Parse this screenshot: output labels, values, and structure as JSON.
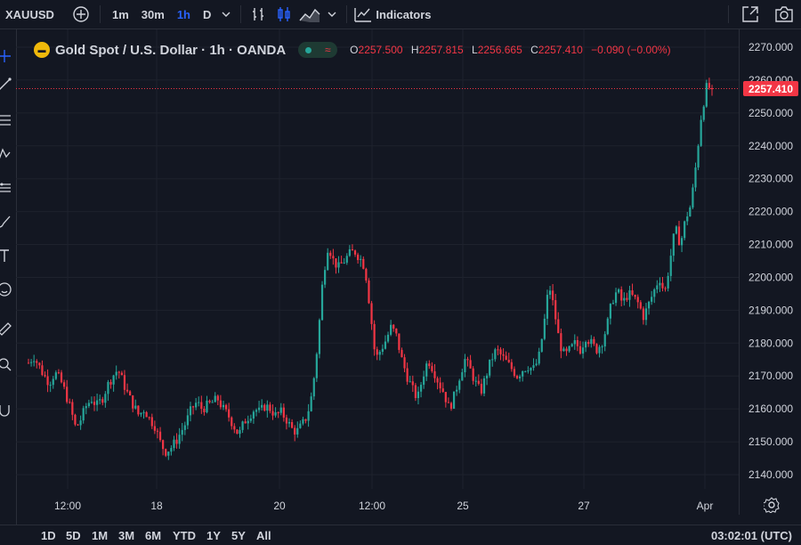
{
  "toolbar": {
    "symbol": "XAUUSD",
    "timeframes": [
      "1m",
      "30m",
      "1h",
      "D"
    ],
    "active_timeframe": "1h",
    "indicators_label": "Indicators"
  },
  "legend": {
    "title": "Gold Spot / U.S. Dollar · 1h · OANDA",
    "open_label": "O",
    "open": "2257.500",
    "high_label": "H",
    "high": "2257.815",
    "low_label": "L",
    "low": "2256.665",
    "close_label": "C",
    "close": "2257.410",
    "change": "−0.090 (−0.00%)"
  },
  "price_axis": {
    "ticks": [
      "2270.000",
      "2260.000",
      "2250.000",
      "2240.000",
      "2230.000",
      "2220.000",
      "2210.000",
      "2200.000",
      "2190.000",
      "2180.000",
      "2170.000",
      "2160.000",
      "2150.000",
      "2140.000"
    ],
    "last_price": "2257.410"
  },
  "time_axis": {
    "ticks": [
      "12:00",
      "18",
      "20",
      "12:00",
      "25",
      "27",
      "Apr"
    ]
  },
  "bottom": {
    "ranges": [
      "1D",
      "5D",
      "1M",
      "3M",
      "6M",
      "YTD",
      "1Y",
      "5Y",
      "All"
    ],
    "clock": "03:02:01 (UTC)"
  },
  "colors": {
    "background": "#131722",
    "up": "#26a69a",
    "down": "#f23645",
    "accent": "#2962ff",
    "grid": "#1e222d",
    "text": "#d1d4dc"
  },
  "chart_data": {
    "type": "candlestick",
    "series_name": "XAUUSD",
    "ylim": [
      2135,
      2275
    ],
    "close_path": [
      2174,
      2176,
      2173,
      2170,
      2168,
      2171,
      2169,
      2165,
      2160,
      2154,
      2157,
      2161,
      2163,
      2161,
      2163,
      2167,
      2170,
      2172,
      2168,
      2164,
      2161,
      2158,
      2160,
      2157,
      2155,
      2150,
      2147,
      2148,
      2150,
      2153,
      2156,
      2160,
      2162,
      2160,
      2161,
      2162,
      2163,
      2160,
      2158,
      2155,
      2152,
      2156,
      2158,
      2160,
      2159,
      2161,
      2160,
      2158,
      2159,
      2157,
      2154,
      2153,
      2155,
      2158,
      2165,
      2180,
      2200,
      2210,
      2205,
      2203,
      2205,
      2207,
      2208,
      2206,
      2203,
      2190,
      2175,
      2178,
      2181,
      2185,
      2182,
      2175,
      2170,
      2166,
      2163,
      2170,
      2175,
      2172,
      2168,
      2165,
      2160,
      2164,
      2170,
      2175,
      2172,
      2168,
      2165,
      2170,
      2175,
      2178,
      2176,
      2174,
      2172,
      2170,
      2172,
      2173,
      2172,
      2175,
      2185,
      2198,
      2190,
      2180,
      2176,
      2178,
      2180,
      2178,
      2182,
      2180,
      2178,
      2180,
      2185,
      2193,
      2196,
      2192,
      2195,
      2194,
      2192,
      2188,
      2192,
      2196,
      2200,
      2195,
      2205,
      2215,
      2210,
      2218,
      2222,
      2235,
      2250,
      2258,
      2257.41
    ],
    "last": {
      "open": 2257.5,
      "high": 2257.815,
      "low": 2256.665,
      "close": 2257.41,
      "change": -0.09,
      "change_pct": 0.0
    }
  }
}
